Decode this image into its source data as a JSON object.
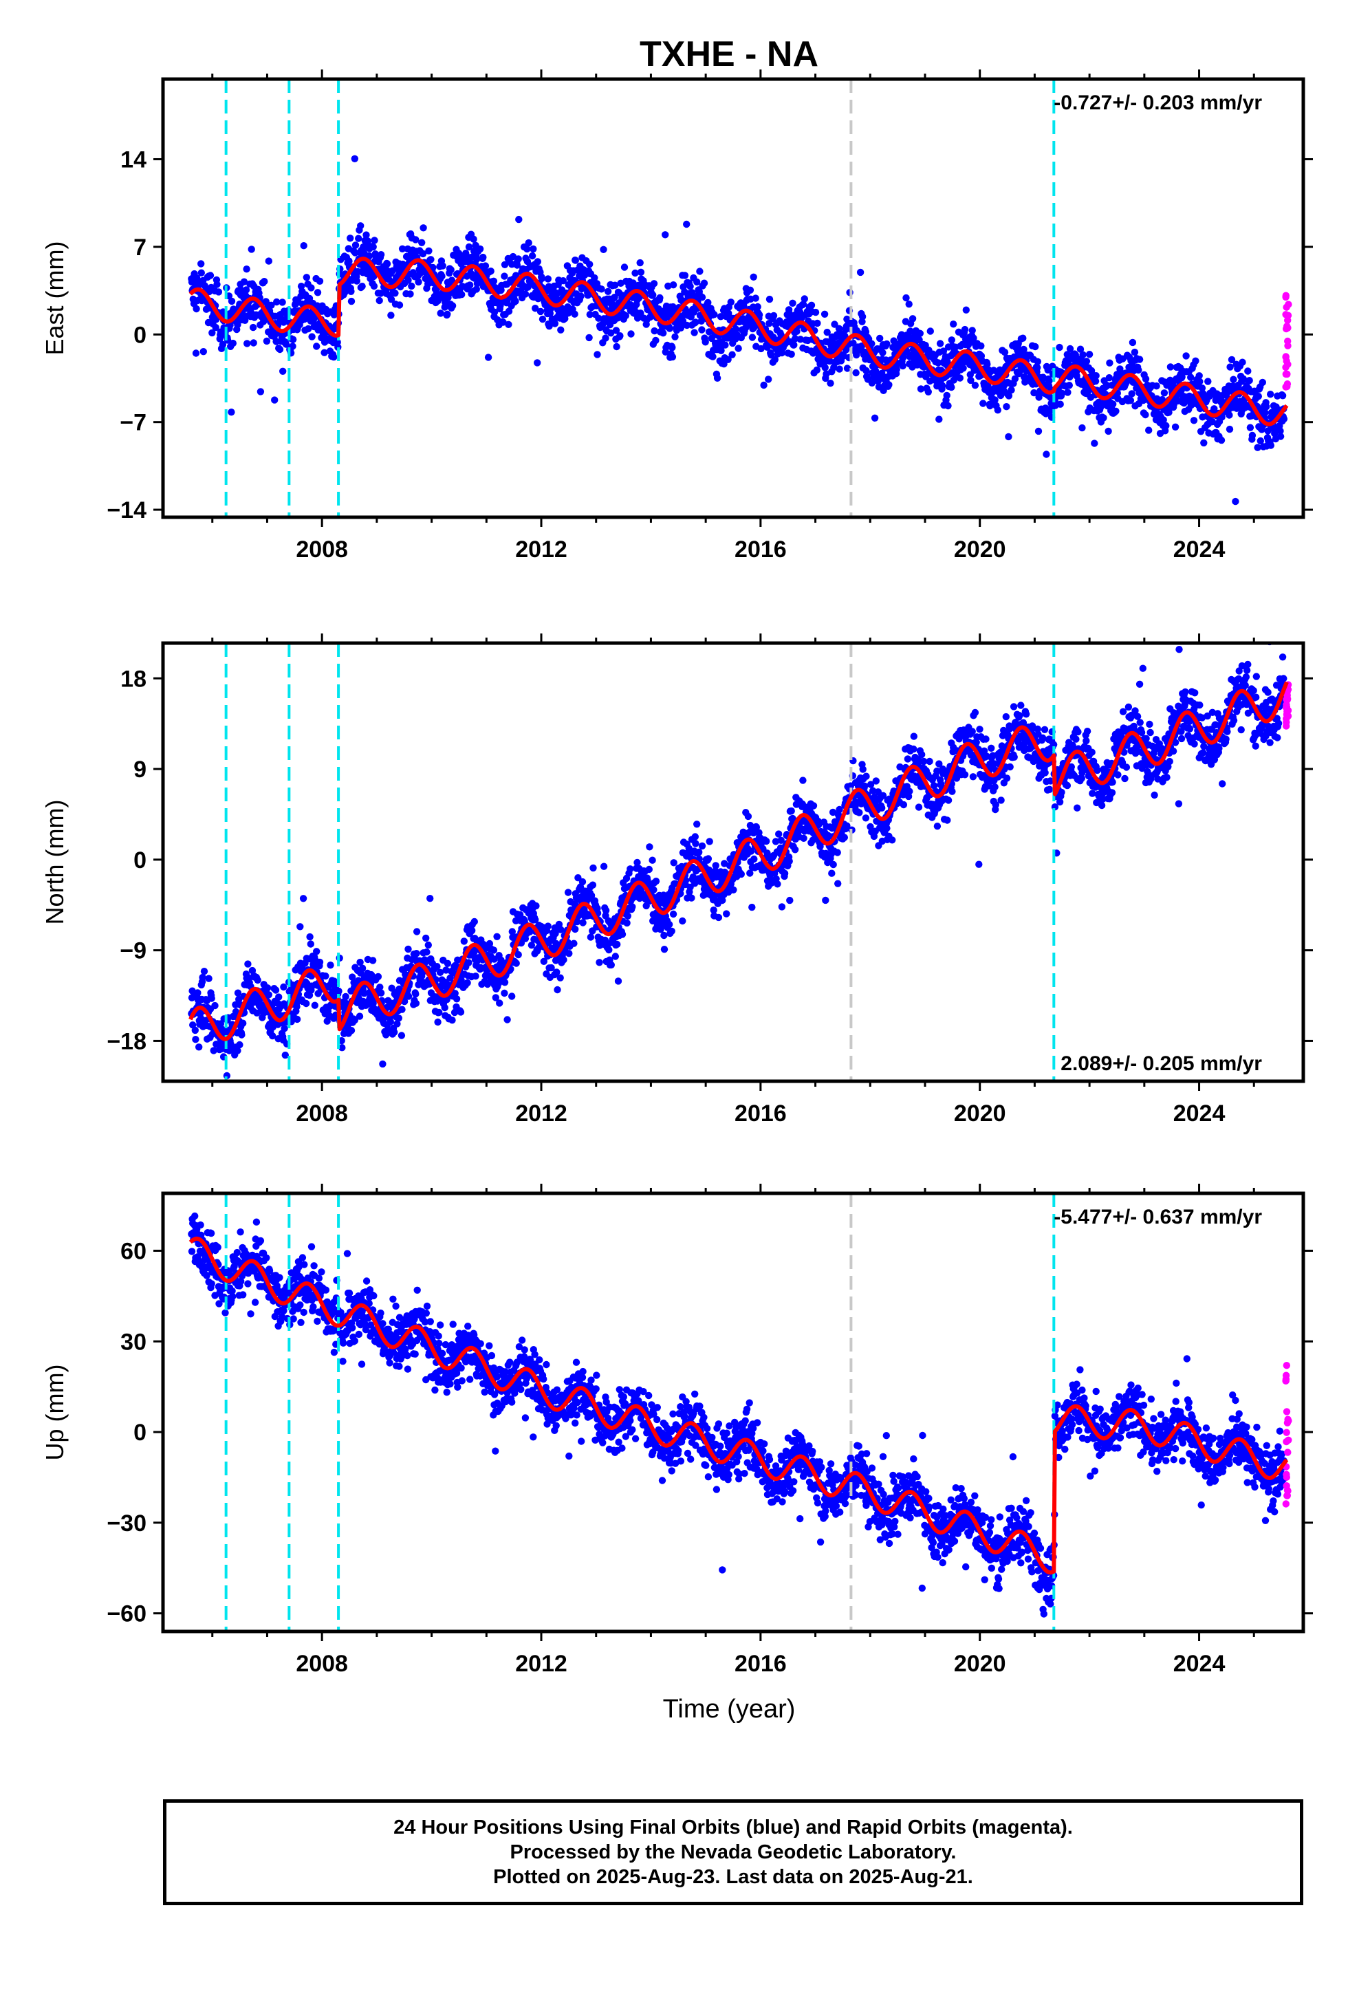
{
  "title": "TXHE - NA",
  "xlabel": "Time (year)",
  "footer": {
    "line1": "24 Hour Positions Using Final Orbits (blue) and Rapid Orbits (magenta).",
    "line2": "Processed by the Nevada Geodetic Laboratory.",
    "line3": "Plotted on 2025-Aug-23. Last data on 2025-Aug-21."
  },
  "colors": {
    "final_points": "#0000ff",
    "rapid_points": "#ff00ff",
    "model": "#ff0000",
    "equipment_change": "#00e5ee",
    "other_event": "#c8c8c8"
  },
  "chart_data": [
    {
      "type": "scatter",
      "name": "east",
      "ylabel": "East (mm)",
      "rate_label": "-0.727+/- 0.203 mm/yr",
      "rate_position": "top-right",
      "xlim": [
        2005.1,
        2025.9
      ],
      "ylim": [
        -14.6,
        20.4
      ],
      "x_ticks": [
        2008,
        2012,
        2016,
        2020,
        2024
      ],
      "y_ticks": [
        -14,
        -7,
        0,
        7,
        14
      ],
      "event_lines_cyan": [
        2006.25,
        2007.4,
        2008.3,
        2021.35
      ],
      "event_lines_gray": [
        2017.65
      ],
      "model": [
        [
          2005.6,
          2.6
        ],
        [
          2006.3,
          2.1
        ],
        [
          2007.5,
          1.2
        ],
        [
          2008.3,
          1.0
        ],
        [
          2008.32,
          5.0
        ],
        [
          2010.0,
          4.8
        ],
        [
          2012.0,
          3.6
        ],
        [
          2014.0,
          2.2
        ],
        [
          2016.0,
          0.6
        ],
        [
          2018.0,
          -1.4
        ],
        [
          2020.0,
          -2.6
        ],
        [
          2021.35,
          -3.6
        ],
        [
          2021.37,
          -3.4
        ],
        [
          2023.0,
          -4.5
        ],
        [
          2025.6,
          -6.3
        ]
      ],
      "model_amplitude": 1.1,
      "rapid_range": [
        -4.8,
        3.2
      ]
    },
    {
      "type": "scatter",
      "name": "north",
      "ylabel": "North (mm)",
      "rate_label": "2.089+/- 0.205 mm/yr",
      "rate_position": "bottom-right",
      "xlim": [
        2005.1,
        2025.9
      ],
      "ylim": [
        -22.0,
        21.5
      ],
      "x_ticks": [
        2008,
        2012,
        2016,
        2020,
        2024
      ],
      "y_ticks": [
        -18,
        -9,
        0,
        9,
        18
      ],
      "event_lines_cyan": [
        2006.25,
        2007.4,
        2008.3,
        2021.35
      ],
      "event_lines_gray": [
        2017.65
      ],
      "model": [
        [
          2005.6,
          -17.0
        ],
        [
          2008.3,
          -12.0
        ],
        [
          2008.32,
          -15.0
        ],
        [
          2010.0,
          -12.0
        ],
        [
          2012.0,
          -8.0
        ],
        [
          2014.0,
          -3.8
        ],
        [
          2016.0,
          0.5
        ],
        [
          2018.0,
          5.5
        ],
        [
          2020.0,
          10.0
        ],
        [
          2021.35,
          12.0
        ],
        [
          2021.37,
          8.0
        ],
        [
          2023.0,
          11.0
        ],
        [
          2025.6,
          16.5
        ]
      ],
      "model_amplitude": 2.0,
      "rapid_range": [
        13.0,
        17.5
      ]
    },
    {
      "type": "scatter",
      "name": "up",
      "ylabel": "Up (mm)",
      "rate_label": "-5.477+/- 0.637 mm/yr",
      "rate_position": "top-right",
      "xlim": [
        2005.1,
        2025.9
      ],
      "ylim": [
        -66,
        79
      ],
      "x_ticks": [
        2008,
        2012,
        2016,
        2020,
        2024
      ],
      "y_ticks": [
        -60,
        -30,
        0,
        30,
        60
      ],
      "event_lines_cyan": [
        2006.25,
        2007.4,
        2008.3,
        2021.35
      ],
      "event_lines_gray": [
        2017.65
      ],
      "model": [
        [
          2005.6,
          60.0
        ],
        [
          2008.3,
          40.0
        ],
        [
          2010.0,
          28.0
        ],
        [
          2012.0,
          14.0
        ],
        [
          2014.0,
          2.0
        ],
        [
          2016.0,
          -9.0
        ],
        [
          2018.0,
          -20.0
        ],
        [
          2020.0,
          -33.0
        ],
        [
          2021.35,
          -42.0
        ],
        [
          2021.37,
          4.0
        ],
        [
          2023.0,
          2.0
        ],
        [
          2025.6,
          -12.0
        ]
      ],
      "model_amplitude": 5.0,
      "rapid_range": [
        -25,
        24
      ]
    }
  ]
}
